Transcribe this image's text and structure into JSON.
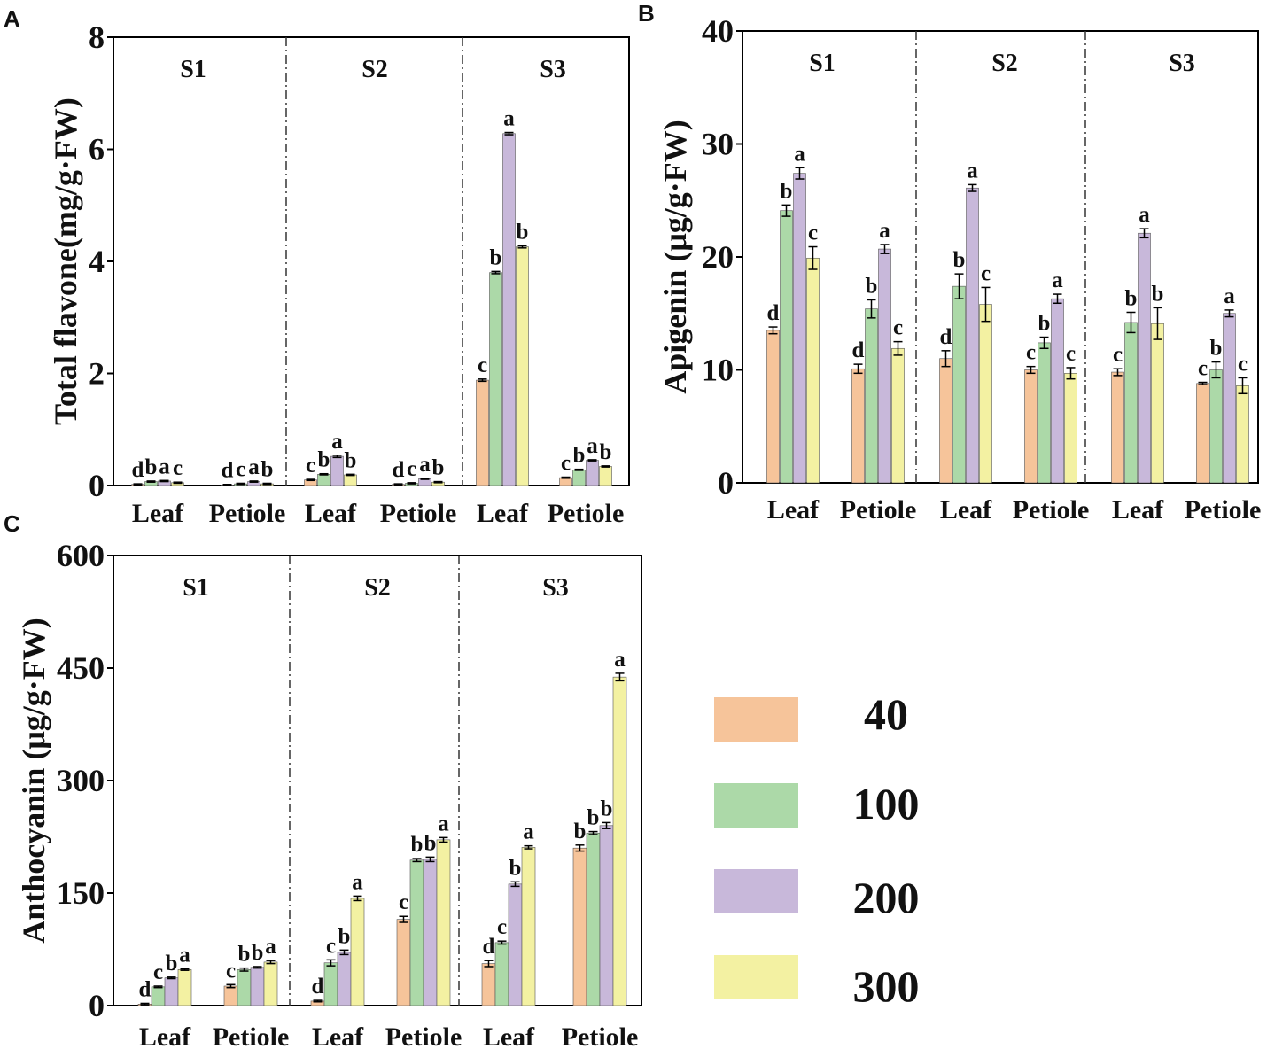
{
  "legend": {
    "items": [
      {
        "label": "40",
        "color": "#f6c49a"
      },
      {
        "label": "100",
        "color": "#acd9a8"
      },
      {
        "label": "200",
        "color": "#c8b8da"
      },
      {
        "label": "300",
        "color": "#f3f1a2"
      }
    ]
  },
  "chart_data": [
    {
      "panel": "A",
      "type": "bar",
      "ylabel": "Total flavone(mg/g·FW)",
      "ylim": [
        0,
        8
      ],
      "yticks": [
        0,
        2,
        4,
        6,
        8
      ],
      "stages": [
        "S1",
        "S2",
        "S3"
      ],
      "categories": [
        "Leaf",
        "Petiole",
        "Leaf",
        "Petiole",
        "Leaf",
        "Petiole"
      ],
      "series": [
        {
          "name": "40",
          "values": [
            0.02,
            0.01,
            0.1,
            0.02,
            1.88,
            0.14
          ],
          "errors": [
            0.01,
            0.01,
            0.01,
            0.01,
            0.02,
            0.01
          ],
          "labels": [
            "d",
            "d",
            "c",
            "d",
            "c",
            "c"
          ]
        },
        {
          "name": "100",
          "values": [
            0.07,
            0.03,
            0.2,
            0.04,
            3.8,
            0.28
          ],
          "errors": [
            0.01,
            0.01,
            0.01,
            0.01,
            0.02,
            0.01
          ],
          "labels": [
            "b",
            "c",
            "b",
            "c",
            "b",
            "b"
          ]
        },
        {
          "name": "200",
          "values": [
            0.08,
            0.07,
            0.52,
            0.12,
            6.28,
            0.45
          ],
          "errors": [
            0.01,
            0.01,
            0.02,
            0.01,
            0.02,
            0.01
          ],
          "labels": [
            "a",
            "a",
            "a",
            "a",
            "a",
            "a"
          ]
        },
        {
          "name": "300",
          "values": [
            0.05,
            0.03,
            0.19,
            0.06,
            4.26,
            0.34
          ],
          "errors": [
            0.01,
            0.01,
            0.01,
            0.01,
            0.02,
            0.01
          ],
          "labels": [
            "c",
            "b",
            "b",
            "b",
            "b",
            "b"
          ]
        }
      ]
    },
    {
      "panel": "B",
      "type": "bar",
      "ylabel": "Apigenin (μg/g·FW)",
      "ylim": [
        0,
        40
      ],
      "yticks": [
        0,
        10,
        20,
        30,
        40
      ],
      "stages": [
        "S1",
        "S2",
        "S3"
      ],
      "categories": [
        "Leaf",
        "Petiole",
        "Leaf",
        "Petiole",
        "Leaf",
        "Petiole"
      ],
      "series": [
        {
          "name": "40",
          "values": [
            13.5,
            10.1,
            11.0,
            10.0,
            9.8,
            8.8
          ],
          "errors": [
            0.3,
            0.4,
            0.7,
            0.3,
            0.3,
            0.1
          ],
          "labels": [
            "d",
            "d",
            "d",
            "c",
            "c",
            "c"
          ]
        },
        {
          "name": "100",
          "values": [
            24.1,
            15.4,
            17.4,
            12.4,
            14.2,
            10.0
          ],
          "errors": [
            0.5,
            0.8,
            1.1,
            0.5,
            0.9,
            0.7
          ],
          "labels": [
            "b",
            "b",
            "b",
            "b",
            "b",
            "b"
          ]
        },
        {
          "name": "200",
          "values": [
            27.4,
            20.7,
            26.1,
            16.3,
            22.1,
            15.0
          ],
          "errors": [
            0.5,
            0.4,
            0.3,
            0.4,
            0.4,
            0.3
          ],
          "labels": [
            "a",
            "a",
            "a",
            "a",
            "a",
            "a"
          ]
        },
        {
          "name": "300",
          "values": [
            19.9,
            11.9,
            15.8,
            9.7,
            14.1,
            8.6
          ],
          "errors": [
            1.0,
            0.6,
            1.5,
            0.5,
            1.4,
            0.7
          ],
          "labels": [
            "c",
            "c",
            "c",
            "c",
            "b",
            "c"
          ]
        }
      ]
    },
    {
      "panel": "C",
      "type": "bar",
      "ylabel": "Anthocyanin (μg/g·FW)",
      "ylim": [
        0,
        600
      ],
      "yticks": [
        0,
        150,
        300,
        450,
        600
      ],
      "stages": [
        "S1",
        "S2",
        "S3"
      ],
      "categories": [
        "Leaf",
        "Petiole",
        "Leaf",
        "Petiole",
        "Leaf",
        "Petiole"
      ],
      "series": [
        {
          "name": "40",
          "values": [
            2,
            26,
            6,
            115,
            56,
            210
          ],
          "errors": [
            1,
            2,
            1,
            4,
            4,
            4
          ],
          "labels": [
            "d",
            "c",
            "d",
            "c",
            "d",
            "b"
          ]
        },
        {
          "name": "100",
          "values": [
            25,
            48,
            57,
            194,
            84,
            230
          ],
          "errors": [
            1,
            2,
            4,
            2,
            2,
            2
          ],
          "labels": [
            "c",
            "b",
            "c",
            "b",
            "c",
            "b"
          ]
        },
        {
          "name": "200",
          "values": [
            37,
            51,
            71,
            195,
            162,
            240
          ],
          "errors": [
            1,
            1,
            3,
            3,
            3,
            4
          ],
          "labels": [
            "b",
            "b",
            "b",
            "b",
            "b",
            "b"
          ]
        },
        {
          "name": "300",
          "values": [
            48,
            58,
            143,
            221,
            211,
            438
          ],
          "errors": [
            1,
            2,
            3,
            3,
            2,
            5
          ],
          "labels": [
            "a",
            "a",
            "a",
            "a",
            "a",
            "a"
          ]
        }
      ]
    }
  ]
}
